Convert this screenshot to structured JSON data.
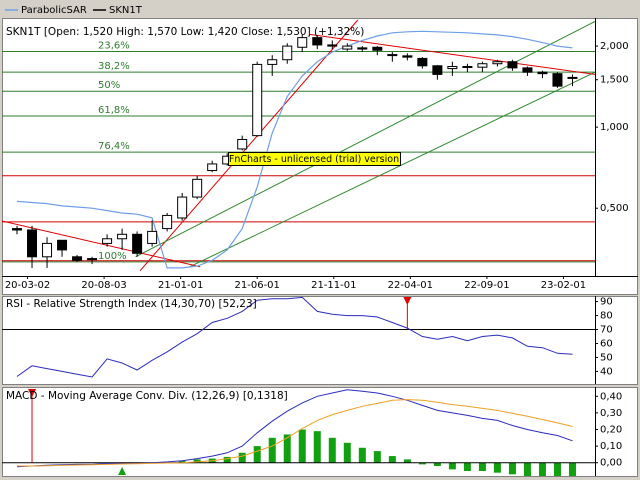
{
  "chart_data": [
    {
      "type": "candlestick",
      "title": "SKN1T [Open: 1,520 High: 1,570 Low: 1,420 Close: 1,530] (+1,32%)",
      "name": "SKN1T",
      "color": "#000000",
      "x": [
        0,
        1,
        2,
        3,
        4,
        5,
        6,
        7,
        8,
        9,
        10,
        11,
        12,
        13,
        14,
        15,
        16,
        17,
        18,
        19,
        20,
        21,
        22,
        23,
        24,
        25,
        26,
        27,
        28,
        29,
        30,
        31,
        32,
        33,
        34,
        35,
        36,
        37
      ],
      "open": [
        0.42,
        0.415,
        0.33,
        0.38,
        0.33,
        0.325,
        0.37,
        0.385,
        0.4,
        0.37,
        0.42,
        0.46,
        0.55,
        0.69,
        0.73,
        0.83,
        0.93,
        1.71,
        1.78,
        1.98,
        2.15,
        2.02,
        1.95,
        1.97,
        1.98,
        1.86,
        1.84,
        1.8,
        1.69,
        1.65,
        1.68,
        1.67,
        1.72,
        1.75,
        1.66,
        1.6,
        1.58,
        1.52
      ],
      "high": [
        0.43,
        0.43,
        0.39,
        0.38,
        0.335,
        0.33,
        0.4,
        0.42,
        0.41,
        0.45,
        0.48,
        0.57,
        0.66,
        0.75,
        0.8,
        0.93,
        1.75,
        1.85,
        2.05,
        2.2,
        2.2,
        2.1,
        2.05,
        2.0,
        2.0,
        1.9,
        1.88,
        1.82,
        1.7,
        1.75,
        1.72,
        1.75,
        1.78,
        1.78,
        1.68,
        1.62,
        1.6,
        1.57
      ],
      "low": [
        0.4,
        0.3,
        0.3,
        0.33,
        0.315,
        0.31,
        0.36,
        0.35,
        0.33,
        0.36,
        0.41,
        0.45,
        0.54,
        0.68,
        0.72,
        0.82,
        0.92,
        1.55,
        1.72,
        1.9,
        1.95,
        1.95,
        1.92,
        1.9,
        1.85,
        1.75,
        1.77,
        1.65,
        1.5,
        1.55,
        1.6,
        1.6,
        1.68,
        1.62,
        1.55,
        1.52,
        1.4,
        1.42
      ],
      "close": [
        0.415,
        0.33,
        0.37,
        0.35,
        0.32,
        0.322,
        0.385,
        0.4,
        0.34,
        0.41,
        0.47,
        0.55,
        0.64,
        0.73,
        0.78,
        0.9,
        1.71,
        1.78,
        2.0,
        2.15,
        2.02,
        2.0,
        2.0,
        1.95,
        1.93,
        1.85,
        1.82,
        1.69,
        1.57,
        1.68,
        1.67,
        1.72,
        1.75,
        1.66,
        1.6,
        1.58,
        1.42,
        1.53
      ],
      "series": [
        {
          "name": "ParabolicSAR",
          "color": "#6f9fe8",
          "values": [
            0.53,
            0.525,
            0.52,
            0.51,
            0.505,
            0.5,
            0.49,
            0.48,
            0.475,
            0.46,
            0.3,
            0.3,
            0.305,
            0.32,
            0.35,
            0.42,
            0.6,
            0.95,
            1.3,
            1.55,
            1.75,
            1.9,
            2.0,
            2.1,
            2.18,
            2.24,
            2.26,
            2.27,
            2.26,
            2.25,
            2.24,
            2.22,
            2.2,
            2.17,
            2.12,
            2.06,
            2.0,
            1.97
          ]
        }
      ],
      "xlim": [
        -1,
        38.5
      ],
      "xticks": [
        {
          "value": 0.7,
          "label": "20-03-02"
        },
        {
          "value": 5.8,
          "label": "20-08-03"
        },
        {
          "value": 10.9,
          "label": "21-01-01"
        },
        {
          "value": 16,
          "label": "21-06-01"
        },
        {
          "value": 21.1,
          "label": "21-11-01"
        },
        {
          "value": 26.2,
          "label": "22-04-01"
        },
        {
          "value": 31.3,
          "label": "22-09-01"
        },
        {
          "value": 36.4,
          "label": "23-02-01"
        }
      ],
      "ylim": [
        0.28,
        2.5
      ],
      "log_scale": true,
      "yticks": [
        {
          "value": 0.5,
          "label": "0,500"
        },
        {
          "value": 1,
          "label": "1,000"
        },
        {
          "value": 1.5,
          "label": "1,500"
        },
        {
          "value": 2,
          "label": "2,000"
        }
      ],
      "levels": [
        {
          "label": "23,6%",
          "value": 1.91
        },
        {
          "label": "38,2%",
          "value": 1.6
        },
        {
          "label": "50%",
          "value": 1.36
        },
        {
          "label": "61,8%",
          "value": 1.1
        },
        {
          "label": "76,4%",
          "value": 0.808
        },
        {
          "label": "100%",
          "value": 0.316
        }
      ],
      "level_color": "#2e7d2e",
      "hlines": [
        0.66,
        0.445,
        0.319
      ],
      "hline_color": "#d00000",
      "trendlines": [
        {
          "color": "#e00000",
          "x": [
            8.2,
            22.7
          ],
          "y": [
            0.293,
            2.5
          ]
        },
        {
          "color": "#2e8b2e",
          "x": [
            7.9,
            38.5
          ],
          "y": [
            0.33,
            2.47
          ]
        },
        {
          "color": "#2e8b2e",
          "x": [
            11.5,
            38.5
          ],
          "y": [
            0.303,
            1.6
          ]
        },
        {
          "color": "#e00000",
          "x": [
            19.5,
            38.5
          ],
          "y": [
            2.21,
            1.57
          ]
        },
        {
          "color": "#e00000",
          "x": [
            -1,
            12.2
          ],
          "y": [
            0.448,
            0.303
          ]
        }
      ],
      "annotation": "FnCharts - unlicensed (trial) version"
    },
    {
      "type": "line",
      "title": "RSI - Relative Strength Index (14,30,70) [52,23]",
      "series": [
        {
          "color": "#2b2bbf",
          "values": [
            36.4,
            44,
            42,
            40,
            38,
            36,
            49,
            46,
            41,
            48,
            54,
            61,
            67,
            75,
            78,
            83,
            91,
            92,
            92,
            93,
            83,
            81,
            80,
            80,
            79,
            75,
            71,
            65,
            63,
            65,
            62,
            65,
            66,
            64,
            58,
            57,
            53,
            52.23
          ]
        }
      ],
      "ylim": [
        31,
        94
      ],
      "yticks": [
        40,
        50,
        60,
        70,
        80,
        90
      ],
      "hlines": [
        70,
        30
      ],
      "hline_color": "#000000",
      "signals": [
        {
          "x": 26,
          "color": "#e00000",
          "direction": "down"
        }
      ]
    },
    {
      "type": "macd",
      "title": "MACD - Moving Average Conv. Div. (12,26,9) [0,1318]",
      "series": [
        {
          "type": "line",
          "color": "#2b2bbf",
          "values": [
            -0.024,
            -0.02,
            -0.015,
            -0.012,
            -0.01,
            -0.01,
            -0.005,
            -0.005,
            -0.005,
            0,
            0.005,
            0.012,
            0.025,
            0.04,
            0.06,
            0.1,
            0.18,
            0.25,
            0.31,
            0.36,
            0.4,
            0.42,
            0.44,
            0.43,
            0.42,
            0.4,
            0.376,
            0.345,
            0.315,
            0.3,
            0.285,
            0.267,
            0.255,
            0.224,
            0.2,
            0.18,
            0.164,
            0.1318
          ]
        },
        {
          "type": "line",
          "color": "#f0a020",
          "values": [
            -0.02,
            -0.02,
            -0.018,
            -0.016,
            -0.014,
            -0.012,
            -0.01,
            -0.008,
            -0.006,
            -0.004,
            -0.002,
            0,
            0.005,
            0.012,
            0.025,
            0.04,
            0.07,
            0.1,
            0.15,
            0.206,
            0.255,
            0.29,
            0.315,
            0.34,
            0.357,
            0.376,
            0.38,
            0.376,
            0.364,
            0.35,
            0.34,
            0.327,
            0.315,
            0.297,
            0.28,
            0.26,
            0.24,
            0.218
          ]
        },
        {
          "type": "bar",
          "color": "#10a010",
          "values": [
            null,
            null,
            null,
            null,
            null,
            null,
            null,
            null,
            null,
            null,
            null,
            0.01,
            0.02,
            0.025,
            0.035,
            0.06,
            0.1,
            0.15,
            0.17,
            0.2,
            0.19,
            0.15,
            0.12,
            0.09,
            0.07,
            0.04,
            0.02,
            -0.01,
            -0.02,
            -0.04,
            -0.05,
            -0.05,
            -0.06,
            -0.07,
            -0.08,
            -0.08,
            -0.08,
            -0.08
          ]
        }
      ],
      "ylim": [
        -0.08,
        0.45
      ],
      "yticks": [
        {
          "value": 0,
          "label": "0,00"
        },
        {
          "value": 0.1,
          "label": "0,10"
        },
        {
          "value": 0.2,
          "label": "0,20"
        },
        {
          "value": 0.3,
          "label": "0,30"
        },
        {
          "value": 0.4,
          "label": "0,40"
        }
      ],
      "hlines": [
        0
      ],
      "hline_color": "#000000",
      "signals": [
        {
          "x": 1,
          "color": "#e00000",
          "direction": "down"
        },
        {
          "x": 7,
          "color": "#10a010",
          "direction": "up"
        }
      ]
    }
  ]
}
